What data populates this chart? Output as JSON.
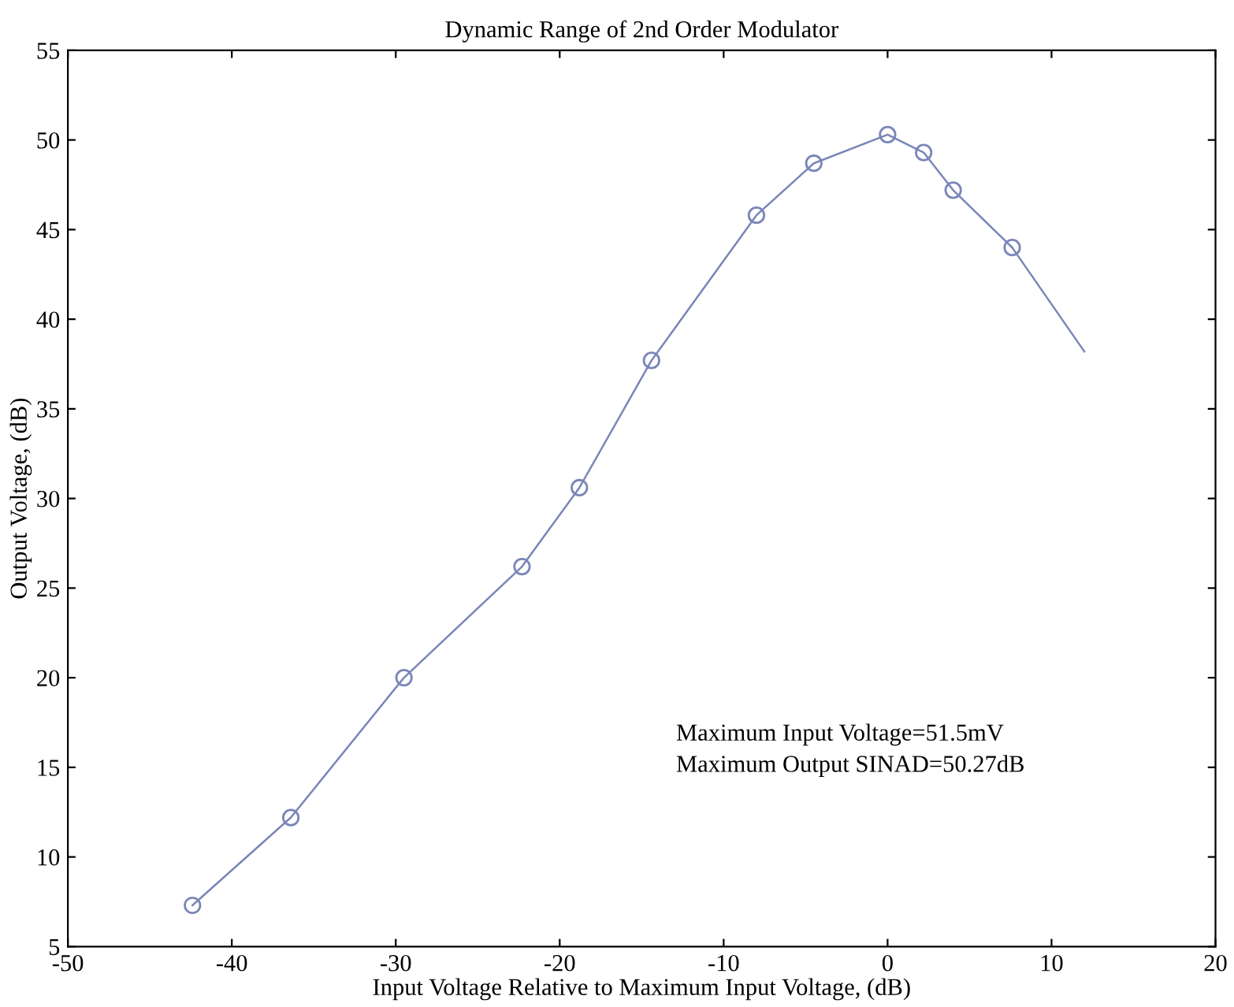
{
  "chart_data": {
    "type": "line",
    "title": "Dynamic Range of 2nd Order Modulator",
    "xlabel": "Input Voltage Relative to Maximum Input Voltage, (dB)",
    "ylabel": "Output Voltage, (dB)",
    "series": [
      {
        "color": "#7a86b8",
        "marker": "circle",
        "x": [
          -42.4,
          -36.4,
          -29.5,
          -22.3,
          -18.8,
          -14.4,
          -8.0,
          -4.5,
          0,
          2.2,
          4.0,
          7.6
        ],
        "values": [
          7.3,
          12.2,
          20.0,
          26.2,
          30.6,
          37.7,
          45.8,
          48.7,
          50.3,
          49.3,
          47.2,
          44.0
        ]
      },
      {
        "color": "#7a86b8",
        "marker": "none",
        "x": [
          7.6,
          12.0
        ],
        "values": [
          44.0,
          38.2
        ]
      }
    ],
    "xlim": [
      -50,
      20
    ],
    "xticks": [
      -50,
      -40,
      -30,
      -20,
      -10,
      0,
      10,
      20
    ],
    "ylim": [
      5,
      55
    ],
    "yticks": [
      5,
      10,
      15,
      20,
      25,
      30,
      35,
      40,
      45,
      50,
      55
    ],
    "grid": false,
    "legend": false,
    "annotations": [
      "Maximum Input Voltage=51.5mV",
      "Maximum Output SINAD=50.27dB"
    ]
  }
}
